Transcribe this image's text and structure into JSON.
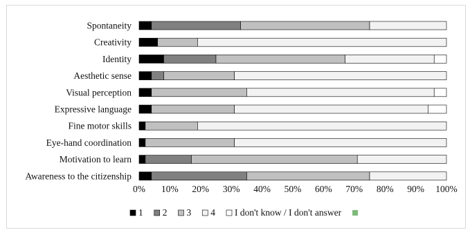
{
  "chart_data": {
    "type": "bar",
    "orientation": "horizontal",
    "stacked": "percent",
    "title": "",
    "xlabel": "",
    "ylabel": "",
    "xlim": [
      0,
      100
    ],
    "x_ticks": [
      "0%",
      "10%",
      "20%",
      "30%",
      "40%",
      "50%",
      "60%",
      "70%",
      "80%",
      "90%",
      "100%"
    ],
    "grid": false,
    "legend_position": "bottom",
    "categories": [
      "Spontaneity",
      "Creativity",
      "Identity",
      "Aesthetic sense",
      "Visual perception",
      "Expressive language",
      "Fine motor skills",
      "Eye-hand coordination",
      "Motivation to learn",
      "Awareness to the citizenship"
    ],
    "series": [
      {
        "name": "1",
        "color": "#000000",
        "values": [
          4,
          6,
          8,
          4,
          4,
          4,
          2,
          2,
          2,
          4
        ]
      },
      {
        "name": "2",
        "color": "#808080",
        "values": [
          29,
          0,
          17,
          4,
          0,
          0,
          0,
          0,
          15,
          31
        ]
      },
      {
        "name": "3",
        "color": "#c0c0c0",
        "values": [
          42,
          13,
          42,
          23,
          31,
          27,
          17,
          29,
          54,
          40
        ]
      },
      {
        "name": "4",
        "color": "#f2f2f2",
        "values": [
          25,
          81,
          29,
          69,
          61,
          63,
          81,
          69,
          29,
          25
        ]
      },
      {
        "name": "I don't know / I don't answer",
        "color": "#ffffff",
        "values": [
          0,
          0,
          4,
          0,
          4,
          6,
          0,
          0,
          0,
          0
        ]
      },
      {
        "name": "",
        "color": "#7fb97a",
        "values": [
          0,
          0,
          0,
          0,
          0,
          0,
          0,
          0,
          0,
          0
        ]
      }
    ]
  }
}
